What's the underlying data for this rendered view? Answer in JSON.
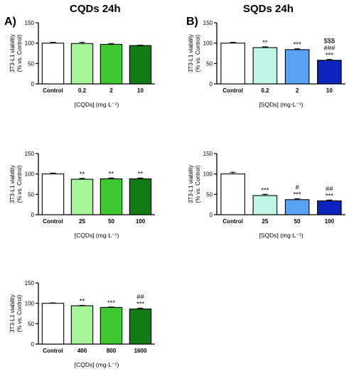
{
  "headings": {
    "left": "CQDs 24h",
    "right": "SQDs 24h"
  },
  "panel_labels": {
    "a": "A)",
    "b": "B)"
  },
  "chart_data": [
    {
      "type": "bar",
      "categories": [
        "Control",
        "0.2",
        "2",
        "10"
      ],
      "values": [
        100,
        99,
        97,
        94
      ],
      "errors": [
        2,
        3,
        2,
        1
      ],
      "colors": [
        "#ffffff",
        "#a7f599",
        "#3cc82e",
        "#137b13"
      ],
      "annotations": [
        [],
        [],
        [],
        []
      ],
      "title": "",
      "xlabel": "[CQDs] (mg·L⁻¹)",
      "ylabel_line1": "3T3-L1 viability",
      "ylabel_line2": "(% vs. Control)",
      "ylim": [
        0,
        150
      ],
      "yticks": [
        0,
        50,
        100,
        150
      ],
      "grid": false
    },
    {
      "type": "bar",
      "categories": [
        "Control",
        "0.2",
        "2",
        "10"
      ],
      "values": [
        100,
        89,
        84,
        58
      ],
      "errors": [
        2,
        2,
        2,
        2
      ],
      "colors": [
        "#ffffff",
        "#bff5e6",
        "#5aa2f5",
        "#0a24bd"
      ],
      "annotations": [
        [],
        [
          "**"
        ],
        [
          "***"
        ],
        [
          "$$$",
          "###",
          "***"
        ]
      ],
      "title": "",
      "xlabel": "[SQDs] (mg·L⁻¹)",
      "ylabel_line1": "3T3-L1 viability",
      "ylabel_line2": "(% vs. Control)",
      "ylim": [
        0,
        150
      ],
      "yticks": [
        0,
        50,
        100,
        150
      ],
      "grid": false
    },
    {
      "type": "bar",
      "categories": [
        "Control",
        "25",
        "50",
        "100"
      ],
      "values": [
        100,
        87,
        88,
        88
      ],
      "errors": [
        2,
        2,
        2,
        2
      ],
      "colors": [
        "#ffffff",
        "#a7f599",
        "#3cc82e",
        "#137b13"
      ],
      "annotations": [
        [],
        [
          "**"
        ],
        [
          "**"
        ],
        [
          "**"
        ]
      ],
      "title": "",
      "xlabel": "[CQDs] (mg·L⁻¹)",
      "ylabel_line1": "3T3-L1 viability",
      "ylabel_line2": "(% vs. Control)",
      "ylim": [
        0,
        150
      ],
      "yticks": [
        0,
        50,
        100,
        150
      ],
      "grid": false
    },
    {
      "type": "bar",
      "categories": [
        "Control",
        "25",
        "50",
        "100"
      ],
      "values": [
        100,
        47,
        37,
        34
      ],
      "errors": [
        4,
        3,
        2,
        2
      ],
      "colors": [
        "#ffffff",
        "#bff5e6",
        "#5aa2f5",
        "#0a24bd"
      ],
      "annotations": [
        [],
        [
          "***"
        ],
        [
          "#",
          "***"
        ],
        [
          "##",
          "***"
        ]
      ],
      "title": "",
      "xlabel": "[SQDs] (mg·L⁻¹)",
      "ylabel_line1": "3T3-L1 viability",
      "ylabel_line2": "(% vs. Control)",
      "ylim": [
        0,
        150
      ],
      "yticks": [
        0,
        50,
        100,
        150
      ],
      "grid": false
    },
    {
      "type": "bar",
      "categories": [
        "Control",
        "400",
        "800",
        "1600"
      ],
      "values": [
        100,
        94,
        90,
        86
      ],
      "errors": [
        1,
        1,
        1,
        2
      ],
      "colors": [
        "#ffffff",
        "#a7f599",
        "#3cc82e",
        "#137b13"
      ],
      "annotations": [
        [],
        [
          "**"
        ],
        [
          "***"
        ],
        [
          "##",
          "***"
        ]
      ],
      "title": "",
      "xlabel": "[CQDs] (mg·L⁻¹)",
      "ylabel_line1": "3T3-L1 viability",
      "ylabel_line2": "(% vs. Control)",
      "ylim": [
        0,
        150
      ],
      "yticks": [
        0,
        50,
        100,
        150
      ],
      "grid": false
    }
  ]
}
